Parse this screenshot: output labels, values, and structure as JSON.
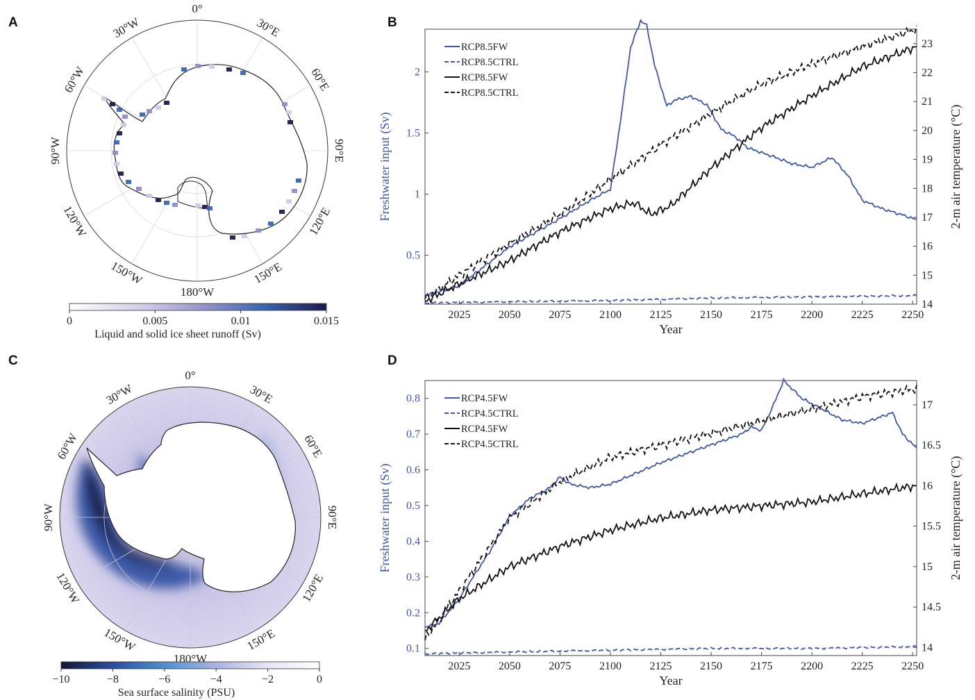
{
  "panels": {
    "A": {
      "label": "A",
      "longitude_labels": [
        "0",
        "30",
        "E",
        "60",
        "E",
        "90",
        "E",
        "120",
        "E",
        "150",
        "E",
        "180",
        "W",
        "150",
        "W",
        "120",
        "W",
        "90",
        "W",
        "60",
        "W",
        "30",
        "W"
      ],
      "lon_text": [
        "0°",
        "30°E",
        "60°E",
        "90°E",
        "120°E",
        "150°E",
        "180°W",
        "150°W",
        "120°W",
        "90°W",
        "60°W",
        "30°W"
      ],
      "colorbar": {
        "ticks": [
          "0",
          "0.005",
          "0.01",
          "0.015"
        ],
        "label": "Liquid and solid ice sheet runoff (Sv)",
        "colors": [
          "#ffffff",
          "#cfc9e6",
          "#8d8ec7",
          "#3a66b0",
          "#1c1b4f"
        ]
      }
    },
    "C": {
      "label": "C",
      "lon_text": [
        "0°",
        "30°E",
        "60°E",
        "90°E",
        "120°E",
        "150°E",
        "180°W",
        "150°W",
        "120°W",
        "90°W",
        "60°W",
        "30°W"
      ],
      "colorbar": {
        "ticks": [
          "−10",
          "−8",
          "−6",
          "−4",
          "−2",
          "0"
        ],
        "label": "Sea surface salinity (PSU)",
        "colors": [
          "#141634",
          "#2b4ea0",
          "#4f8fd2",
          "#a8b4e0",
          "#e8e6f4",
          "#ffffff"
        ]
      }
    }
  },
  "chart_data": [
    {
      "panel": "B",
      "type": "line",
      "xlabel": "Year",
      "ylabel_left": "Freshwater input (Sv)",
      "ylabel_right": "2-m air temperature (°C)",
      "xlim": [
        2008,
        2252
      ],
      "ylim_left": [
        0.1,
        2.35
      ],
      "ylim_right": [
        14,
        23.5
      ],
      "x_ticks": [
        "2025",
        "2050",
        "2075",
        "2100",
        "2125",
        "2150",
        "2175",
        "2200",
        "2225",
        "2250"
      ],
      "y_ticks_left": [
        "0.5",
        "1",
        "1.5",
        "2"
      ],
      "y_ticks_right": [
        "14",
        "15",
        "16",
        "17",
        "18",
        "19",
        "20",
        "21",
        "22",
        "23"
      ],
      "legend": [
        "RCP8.5FW",
        "RCP8.5CTRL",
        "RCP8.5FW",
        "RCP8.5CTRL"
      ],
      "series": [
        {
          "name": "RCP8.5FW",
          "axis": "left",
          "color": "#3f56a6",
          "dash": "solid",
          "x": [
            2008,
            2025,
            2050,
            2075,
            2090,
            2100,
            2105,
            2110,
            2115,
            2118,
            2122,
            2128,
            2132,
            2140,
            2148,
            2155,
            2162,
            2168,
            2175,
            2182,
            2190,
            2200,
            2210,
            2218,
            2225,
            2235,
            2245,
            2252
          ],
          "y": [
            0.17,
            0.25,
            0.57,
            0.8,
            0.95,
            1.04,
            1.6,
            2.2,
            2.42,
            2.38,
            2.05,
            1.72,
            1.77,
            1.8,
            1.73,
            1.53,
            1.47,
            1.38,
            1.34,
            1.3,
            1.25,
            1.22,
            1.3,
            1.15,
            0.95,
            0.88,
            0.83,
            0.79
          ]
        },
        {
          "name": "RCP8.5CTRL",
          "axis": "left",
          "color": "#3f56a6",
          "dash": "dashed",
          "x": [
            2008,
            2050,
            2100,
            2150,
            2200,
            2252
          ],
          "y": [
            0.11,
            0.12,
            0.13,
            0.15,
            0.16,
            0.17
          ]
        },
        {
          "name": "RCP8.5FW",
          "axis": "right",
          "color": "#111111",
          "dash": "solid",
          "x": [
            2008,
            2025,
            2050,
            2075,
            2100,
            2112,
            2120,
            2130,
            2150,
            2175,
            2200,
            2225,
            2252
          ],
          "y": [
            14.1,
            14.7,
            15.5,
            16.5,
            17.3,
            17.5,
            17.1,
            17.4,
            18.7,
            20.1,
            21.2,
            22.2,
            22.9
          ]
        },
        {
          "name": "RCP8.5CTRL",
          "axis": "right",
          "color": "#111111",
          "dash": "dashed",
          "x": [
            2008,
            2025,
            2050,
            2075,
            2100,
            2125,
            2150,
            2175,
            2200,
            2225,
            2252
          ],
          "y": [
            14.2,
            15.0,
            16.1,
            17.1,
            18.3,
            19.5,
            20.6,
            21.6,
            22.3,
            22.9,
            23.5
          ]
        }
      ]
    },
    {
      "panel": "D",
      "type": "line",
      "xlabel": "Year",
      "ylabel_left": "Freshwater input (Sv)",
      "ylabel_right": "2-m air temperature (°C)",
      "xlim": [
        2008,
        2252
      ],
      "ylim_left": [
        0.08,
        0.85
      ],
      "ylim_right": [
        13.9,
        17.3
      ],
      "x_ticks": [
        "2025",
        "2050",
        "2075",
        "2100",
        "2125",
        "2150",
        "2175",
        "2200",
        "2225",
        "2250"
      ],
      "y_ticks_left": [
        "0.1",
        "0.2",
        "0.3",
        "0.4",
        "0.5",
        "0.6",
        "0.7",
        "0.8"
      ],
      "y_ticks_right": [
        "14",
        "14.5",
        "15",
        "15.5",
        "16",
        "16.5",
        "17"
      ],
      "legend": [
        "RCP4.5FW",
        "RCP4.5CTRL",
        "RCP4.5FW",
        "RCP4.5CTRL"
      ],
      "series": [
        {
          "name": "RCP4.5FW",
          "axis": "left",
          "color": "#3f56a6",
          "dash": "solid",
          "x": [
            2008,
            2015,
            2025,
            2040,
            2050,
            2060,
            2070,
            2075,
            2080,
            2090,
            2100,
            2125,
            2150,
            2165,
            2170,
            2175,
            2180,
            2186,
            2195,
            2205,
            2215,
            2225,
            2240,
            2245,
            2252
          ],
          "y": [
            0.16,
            0.17,
            0.24,
            0.37,
            0.47,
            0.52,
            0.55,
            0.58,
            0.56,
            0.55,
            0.56,
            0.62,
            0.67,
            0.7,
            0.72,
            0.71,
            0.77,
            0.85,
            0.8,
            0.77,
            0.74,
            0.73,
            0.76,
            0.7,
            0.66
          ]
        },
        {
          "name": "RCP4.5CTRL",
          "axis": "left",
          "color": "#3f56a6",
          "dash": "dashed",
          "x": [
            2008,
            2050,
            2100,
            2150,
            2200,
            2252
          ],
          "y": [
            0.085,
            0.09,
            0.095,
            0.1,
            0.1,
            0.105
          ]
        },
        {
          "name": "RCP4.5FW",
          "axis": "right",
          "color": "#111111",
          "dash": "solid",
          "x": [
            2008,
            2025,
            2050,
            2075,
            2100,
            2125,
            2150,
            2175,
            2200,
            2225,
            2252
          ],
          "y": [
            14.2,
            14.6,
            15.0,
            15.25,
            15.45,
            15.6,
            15.7,
            15.75,
            15.8,
            15.9,
            16.0
          ]
        },
        {
          "name": "RCP4.5CTRL",
          "axis": "right",
          "color": "#111111",
          "dash": "dashed",
          "x": [
            2008,
            2025,
            2050,
            2075,
            2100,
            2125,
            2150,
            2175,
            2200,
            2225,
            2252
          ],
          "y": [
            14.1,
            14.7,
            15.6,
            16.05,
            16.35,
            16.5,
            16.65,
            16.8,
            16.95,
            17.1,
            17.2
          ]
        }
      ]
    }
  ]
}
